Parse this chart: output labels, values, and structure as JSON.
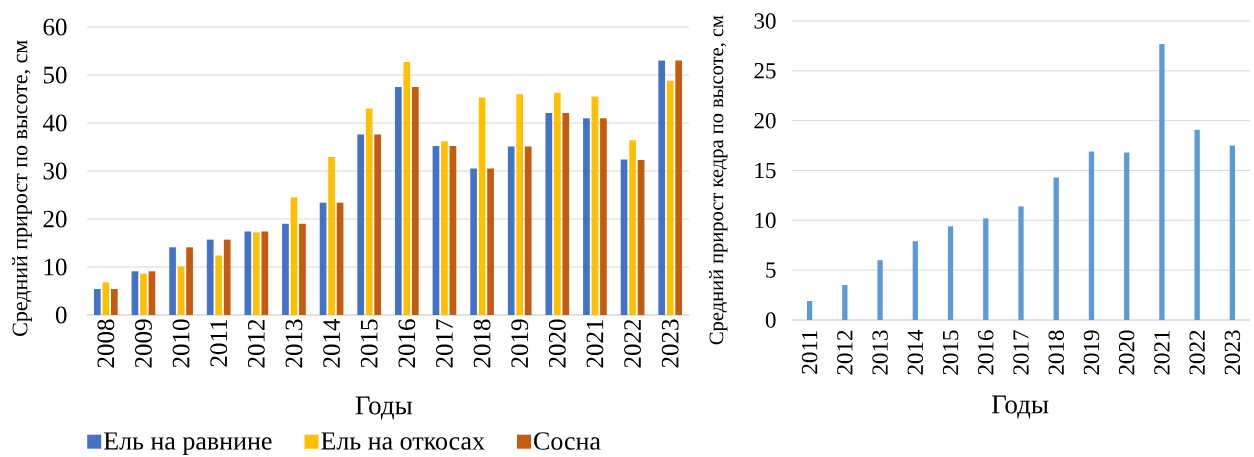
{
  "chart_data": [
    {
      "type": "bar",
      "xlabel": "Годы",
      "ylabel": "Средний прирост по высоте, см",
      "categories": [
        "2008",
        "2009",
        "2010",
        "2011",
        "2012",
        "2013",
        "2014",
        "2015",
        "2016",
        "2017",
        "2018",
        "2019",
        "2020",
        "2021",
        "2022",
        "2023"
      ],
      "series": [
        {
          "name": "Ель на равнине",
          "color": "#4472c4",
          "values": [
            5.4,
            9.1,
            14.1,
            15.7,
            17.4,
            19.0,
            23.4,
            37.6,
            47.5,
            35.2,
            30.5,
            35.1,
            42.1,
            41.0,
            32.4,
            53.0
          ]
        },
        {
          "name": "Ель на откосах",
          "color": "#ffc000",
          "values": [
            6.8,
            8.6,
            10.1,
            12.4,
            17.2,
            24.5,
            32.9,
            43.0,
            52.7,
            36.2,
            45.3,
            46.0,
            46.3,
            45.5,
            36.4,
            48.8
          ]
        },
        {
          "name": "Сосна",
          "color": "#c55a11",
          "values": [
            5.4,
            9.1,
            14.1,
            15.7,
            17.4,
            19.0,
            23.4,
            37.6,
            47.5,
            35.2,
            30.5,
            35.1,
            42.1,
            41.0,
            32.3,
            53.0
          ]
        }
      ],
      "ylim": [
        0,
        60
      ],
      "yticks": [
        0,
        10,
        20,
        30,
        40,
        50,
        60
      ],
      "grid": "y",
      "legend": "bottom"
    },
    {
      "type": "bar",
      "xlabel": "Годы",
      "ylabel": "Средний прирост кедра по высоте, см",
      "categories": [
        "2011",
        "2012",
        "2013",
        "2014",
        "2015",
        "2016",
        "2017",
        "2018",
        "2019",
        "2020",
        "2021",
        "2022",
        "2023"
      ],
      "series": [
        {
          "color": "#5b9bd5",
          "values": [
            1.9,
            3.5,
            6.0,
            7.9,
            9.4,
            10.2,
            11.4,
            14.3,
            16.9,
            16.8,
            27.7,
            19.1,
            17.5
          ]
        }
      ],
      "ylim": [
        0,
        30
      ],
      "yticks": [
        0,
        5,
        10,
        15,
        20,
        25,
        30
      ],
      "grid": "y"
    }
  ]
}
